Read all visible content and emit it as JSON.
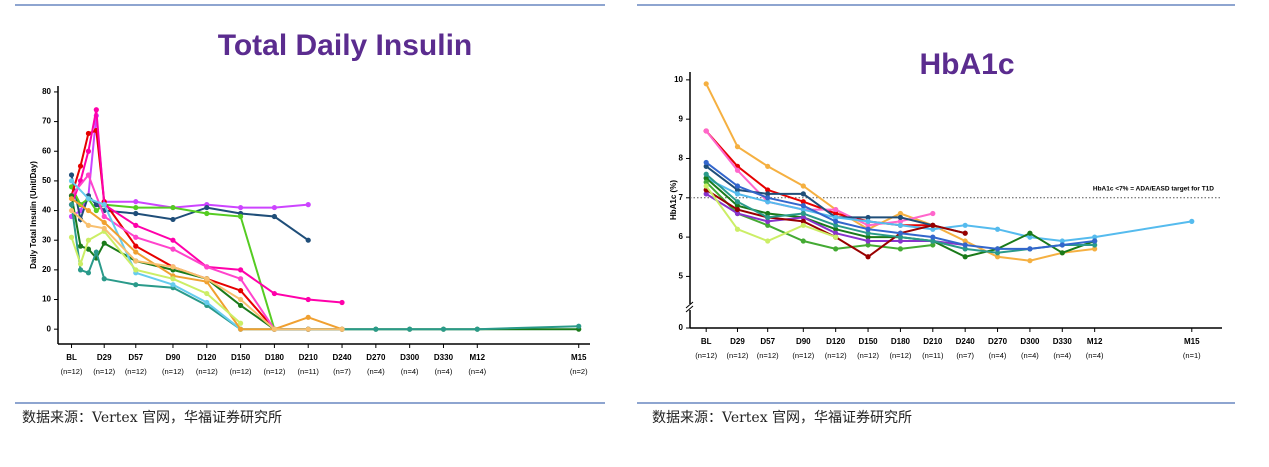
{
  "chart_data": [
    {
      "type": "line",
      "title": "Total Daily Insulin",
      "ylabel": "Daily Total Insulin (Unit/Day)",
      "xlim": [
        -12,
        460
      ],
      "ylim": [
        -5,
        82
      ],
      "yticks": [
        0,
        10,
        20,
        30,
        40,
        50,
        60,
        70,
        80
      ],
      "xticks": [
        {
          "value": 0,
          "label": "BL"
        },
        {
          "value": 29,
          "label": "D29"
        },
        {
          "value": 57,
          "label": "D57"
        },
        {
          "value": 90,
          "label": "D90"
        },
        {
          "value": 120,
          "label": "D120"
        },
        {
          "value": 150,
          "label": "D150"
        },
        {
          "value": 180,
          "label": "D180"
        },
        {
          "value": 210,
          "label": "D210"
        },
        {
          "value": 240,
          "label": "D240"
        },
        {
          "value": 270,
          "label": "D270"
        },
        {
          "value": 300,
          "label": "D300"
        },
        {
          "value": 330,
          "label": "D330"
        },
        {
          "value": 360,
          "label": "M12"
        },
        {
          "value": 450,
          "label": "M15"
        }
      ],
      "n_labels": [
        "(n=12)",
        "(n=12)",
        "(n=12)",
        "(n=12)",
        "(n=12)",
        "(n=12)",
        "(n=12)",
        "(n=11)",
        "(n=7)",
        "(n=4)",
        "(n=4)",
        "(n=4)",
        "(n=4)",
        "(n=2)"
      ],
      "series": [
        {
          "color": "#cc44ff",
          "x": [
            0,
            8,
            15,
            22,
            29,
            57,
            90,
            120,
            150,
            180,
            210
          ],
          "values": [
            38,
            40,
            45,
            72,
            43,
            43,
            41,
            42,
            41,
            41,
            42
          ]
        },
        {
          "color": "#1f4e79",
          "x": [
            0,
            8,
            15,
            22,
            29,
            57,
            90,
            120,
            150,
            180,
            210
          ],
          "values": [
            52,
            37,
            45,
            42,
            40,
            39,
            37,
            41,
            39,
            38,
            30
          ]
        },
        {
          "color": "#55cc22",
          "x": [
            0,
            8,
            15,
            22,
            29,
            57,
            90,
            120,
            150,
            180
          ],
          "values": [
            48,
            42,
            44,
            40,
            42,
            41,
            41,
            39,
            38,
            0
          ]
        },
        {
          "color": "#e60000",
          "x": [
            0,
            8,
            15,
            22,
            29,
            57,
            90,
            120,
            150,
            180,
            210
          ],
          "values": [
            45,
            55,
            66,
            67,
            43,
            28,
            21,
            17,
            13,
            0,
            0
          ]
        },
        {
          "color": "#ff00aa",
          "x": [
            0,
            8,
            15,
            22,
            29,
            57,
            90,
            120,
            150,
            180,
            210,
            240
          ],
          "values": [
            42,
            50,
            60,
            74,
            42,
            35,
            30,
            21,
            20,
            12,
            10,
            9
          ]
        },
        {
          "color": "#ff44cc",
          "x": [
            0,
            15,
            29,
            57,
            90,
            120,
            150,
            180,
            210,
            240
          ],
          "values": [
            45,
            52,
            38,
            31,
            27,
            21,
            17,
            0,
            0,
            0
          ]
        },
        {
          "color": "#1a7a1a",
          "x": [
            0,
            8,
            15,
            22,
            29,
            57,
            90,
            120,
            150,
            180,
            210,
            240,
            270,
            300,
            330,
            360,
            450
          ],
          "values": [
            45,
            28,
            27,
            24,
            29,
            23,
            20,
            17,
            8,
            0,
            0,
            0,
            0,
            0,
            0,
            0,
            0
          ]
        },
        {
          "color": "#2a9a8a",
          "x": [
            0,
            8,
            15,
            22,
            29,
            57,
            90,
            120,
            150,
            180,
            210,
            240,
            270,
            300,
            330,
            360,
            450
          ],
          "values": [
            42,
            20,
            19,
            26,
            17,
            15,
            14,
            8,
            0,
            0,
            0,
            0,
            0,
            0,
            0,
            0,
            1
          ]
        },
        {
          "color": "#66ccee",
          "x": [
            0,
            15,
            29,
            57,
            90,
            120,
            150
          ],
          "values": [
            50,
            44,
            42,
            19,
            15,
            9,
            0
          ]
        },
        {
          "color": "#f0a030",
          "x": [
            0,
            15,
            29,
            57,
            90,
            120,
            150,
            180,
            210,
            240
          ],
          "values": [
            44,
            40,
            36,
            26,
            18,
            16,
            0,
            0,
            4,
            0
          ]
        },
        {
          "color": "#ccee66",
          "x": [
            0,
            8,
            15,
            29,
            57,
            90,
            120,
            150
          ],
          "values": [
            31,
            22,
            30,
            33,
            20,
            17,
            12,
            2
          ]
        },
        {
          "color": "#f8c070",
          "x": [
            0,
            15,
            29,
            57,
            90,
            120,
            150,
            180,
            210,
            240
          ],
          "values": [
            40,
            35,
            34,
            23,
            21,
            17,
            10,
            0,
            0,
            0
          ]
        }
      ]
    },
    {
      "type": "line",
      "title": "HbA1c",
      "ylabel": "HbA1c (%)",
      "xlim": [
        -15,
        478
      ],
      "ylim": [
        0,
        10.2
      ],
      "axis_break": 4.4,
      "yticks": [
        0,
        5,
        6,
        7,
        8,
        9,
        10
      ],
      "reference_line": {
        "value": 7,
        "label": "HbA1c <7% = ADA/EASD target for T1D"
      },
      "xticks": [
        {
          "value": 0,
          "label": "BL"
        },
        {
          "value": 29,
          "label": "D29"
        },
        {
          "value": 57,
          "label": "D57"
        },
        {
          "value": 90,
          "label": "D90"
        },
        {
          "value": 120,
          "label": "D120"
        },
        {
          "value": 150,
          "label": "D150"
        },
        {
          "value": 180,
          "label": "D180"
        },
        {
          "value": 210,
          "label": "D210"
        },
        {
          "value": 240,
          "label": "D240"
        },
        {
          "value": 270,
          "label": "D270"
        },
        {
          "value": 300,
          "label": "D300"
        },
        {
          "value": 330,
          "label": "D330"
        },
        {
          "value": 360,
          "label": "M12"
        },
        {
          "value": 450,
          "label": "M15"
        }
      ],
      "n_labels": [
        "(n=12)",
        "(n=12)",
        "(n=12)",
        "(n=12)",
        "(n=12)",
        "(n=12)",
        "(n=12)",
        "(n=11)",
        "(n=7)",
        "(n=4)",
        "(n=4)",
        "(n=4)",
        "(n=4)",
        "(n=1)"
      ],
      "series": [
        {
          "color": "#f5b041",
          "x": [
            0,
            29,
            57,
            90,
            120,
            150,
            180,
            210,
            240,
            270,
            300,
            330,
            360
          ],
          "values": [
            9.9,
            8.3,
            7.8,
            7.3,
            6.7,
            6.2,
            6.6,
            6.3,
            5.9,
            5.5,
            5.4,
            5.6,
            5.7
          ]
        },
        {
          "color": "#e60000",
          "x": [
            0,
            29,
            57,
            90,
            120,
            150,
            180,
            210
          ],
          "values": [
            8.7,
            7.8,
            7.2,
            6.9,
            6.6,
            6.4,
            6.3,
            6.3
          ]
        },
        {
          "color": "#ff66cc",
          "x": [
            0,
            29,
            57,
            90,
            120,
            150,
            180,
            210
          ],
          "values": [
            8.7,
            7.7,
            6.9,
            6.7,
            6.7,
            6.3,
            6.4,
            6.6
          ]
        },
        {
          "color": "#1f4e79",
          "x": [
            0,
            29,
            57,
            90,
            120,
            150,
            180,
            210,
            240
          ],
          "values": [
            7.8,
            7.2,
            7.1,
            7.1,
            6.5,
            6.5,
            6.5,
            6.3,
            6.1
          ]
        },
        {
          "color": "#55bbee",
          "x": [
            0,
            29,
            57,
            90,
            120,
            150,
            180,
            210,
            240,
            270,
            300,
            330,
            360,
            450
          ],
          "values": [
            7.5,
            7.1,
            6.9,
            6.7,
            6.5,
            6.4,
            6.3,
            6.2,
            6.3,
            6.2,
            6.0,
            5.9,
            6.0,
            6.4
          ]
        },
        {
          "color": "#1a7a1a",
          "x": [
            0,
            29,
            57,
            90,
            120,
            150,
            180,
            210,
            240,
            270,
            300,
            330,
            360
          ],
          "values": [
            7.5,
            6.8,
            6.6,
            6.5,
            6.2,
            6.0,
            6.0,
            5.9,
            5.5,
            5.7,
            6.1,
            5.6,
            5.9
          ]
        },
        {
          "color": "#44aa33",
          "x": [
            0,
            29,
            57,
            90,
            120,
            150,
            180,
            210
          ],
          "values": [
            7.4,
            6.6,
            6.3,
            5.9,
            5.7,
            5.8,
            5.7,
            5.8
          ]
        },
        {
          "color": "#8833cc",
          "x": [
            0,
            29,
            57,
            90,
            120,
            150,
            180,
            210,
            240
          ],
          "values": [
            7.1,
            6.6,
            6.4,
            6.5,
            6.1,
            5.9,
            5.9,
            5.9,
            5.8
          ]
        },
        {
          "color": "#990000",
          "x": [
            0,
            29,
            57,
            90,
            120,
            150,
            180,
            210,
            240
          ],
          "values": [
            7.2,
            6.7,
            6.5,
            6.4,
            6.0,
            5.5,
            6.1,
            6.3,
            6.1
          ]
        },
        {
          "color": "#ccee66",
          "x": [
            0,
            29,
            57,
            90,
            120
          ],
          "values": [
            7.3,
            6.2,
            5.9,
            6.3,
            6.0
          ]
        },
        {
          "color": "#2a9a8a",
          "x": [
            0,
            29,
            57,
            90,
            120,
            150,
            180,
            210,
            240,
            270,
            300,
            330,
            360
          ],
          "values": [
            7.6,
            6.9,
            6.5,
            6.6,
            6.3,
            6.1,
            6.0,
            5.9,
            5.7,
            5.6,
            5.7,
            5.8,
            5.8
          ]
        },
        {
          "color": "#3366cc",
          "x": [
            0,
            29,
            57,
            90,
            120,
            150,
            180,
            210,
            240,
            270,
            300,
            330,
            360
          ],
          "values": [
            7.9,
            7.3,
            7.0,
            6.8,
            6.4,
            6.2,
            6.1,
            6.0,
            5.8,
            5.7,
            5.7,
            5.8,
            5.9
          ]
        }
      ]
    }
  ],
  "sources": [
    "数据来源：Vertex 官网，华福证券研究所",
    "数据来源：Vertex 官网，华福证券研究所"
  ]
}
